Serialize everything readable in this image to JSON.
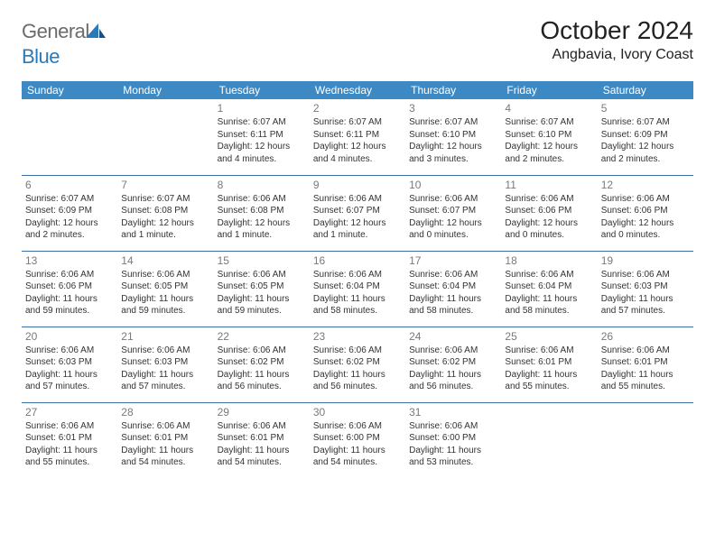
{
  "logo": {
    "text1": "General",
    "text2": "Blue"
  },
  "title": "October 2024",
  "location": "Angbavia, Ivory Coast",
  "colors": {
    "header_bg": "#3d89c3",
    "header_text": "#ffffff",
    "row_border": "#3d6fa3",
    "daynum": "#7a7a7a",
    "body_text": "#333333",
    "logo_gray": "#6b6b6b",
    "logo_blue": "#2a7ab8"
  },
  "weekdays": [
    "Sunday",
    "Monday",
    "Tuesday",
    "Wednesday",
    "Thursday",
    "Friday",
    "Saturday"
  ],
  "weeks": [
    [
      null,
      null,
      {
        "d": "1",
        "sr": "Sunrise: 6:07 AM",
        "ss": "Sunset: 6:11 PM",
        "dl1": "Daylight: 12 hours",
        "dl2": "and 4 minutes."
      },
      {
        "d": "2",
        "sr": "Sunrise: 6:07 AM",
        "ss": "Sunset: 6:11 PM",
        "dl1": "Daylight: 12 hours",
        "dl2": "and 4 minutes."
      },
      {
        "d": "3",
        "sr": "Sunrise: 6:07 AM",
        "ss": "Sunset: 6:10 PM",
        "dl1": "Daylight: 12 hours",
        "dl2": "and 3 minutes."
      },
      {
        "d": "4",
        "sr": "Sunrise: 6:07 AM",
        "ss": "Sunset: 6:10 PM",
        "dl1": "Daylight: 12 hours",
        "dl2": "and 2 minutes."
      },
      {
        "d": "5",
        "sr": "Sunrise: 6:07 AM",
        "ss": "Sunset: 6:09 PM",
        "dl1": "Daylight: 12 hours",
        "dl2": "and 2 minutes."
      }
    ],
    [
      {
        "d": "6",
        "sr": "Sunrise: 6:07 AM",
        "ss": "Sunset: 6:09 PM",
        "dl1": "Daylight: 12 hours",
        "dl2": "and 2 minutes."
      },
      {
        "d": "7",
        "sr": "Sunrise: 6:07 AM",
        "ss": "Sunset: 6:08 PM",
        "dl1": "Daylight: 12 hours",
        "dl2": "and 1 minute."
      },
      {
        "d": "8",
        "sr": "Sunrise: 6:06 AM",
        "ss": "Sunset: 6:08 PM",
        "dl1": "Daylight: 12 hours",
        "dl2": "and 1 minute."
      },
      {
        "d": "9",
        "sr": "Sunrise: 6:06 AM",
        "ss": "Sunset: 6:07 PM",
        "dl1": "Daylight: 12 hours",
        "dl2": "and 1 minute."
      },
      {
        "d": "10",
        "sr": "Sunrise: 6:06 AM",
        "ss": "Sunset: 6:07 PM",
        "dl1": "Daylight: 12 hours",
        "dl2": "and 0 minutes."
      },
      {
        "d": "11",
        "sr": "Sunrise: 6:06 AM",
        "ss": "Sunset: 6:06 PM",
        "dl1": "Daylight: 12 hours",
        "dl2": "and 0 minutes."
      },
      {
        "d": "12",
        "sr": "Sunrise: 6:06 AM",
        "ss": "Sunset: 6:06 PM",
        "dl1": "Daylight: 12 hours",
        "dl2": "and 0 minutes."
      }
    ],
    [
      {
        "d": "13",
        "sr": "Sunrise: 6:06 AM",
        "ss": "Sunset: 6:06 PM",
        "dl1": "Daylight: 11 hours",
        "dl2": "and 59 minutes."
      },
      {
        "d": "14",
        "sr": "Sunrise: 6:06 AM",
        "ss": "Sunset: 6:05 PM",
        "dl1": "Daylight: 11 hours",
        "dl2": "and 59 minutes."
      },
      {
        "d": "15",
        "sr": "Sunrise: 6:06 AM",
        "ss": "Sunset: 6:05 PM",
        "dl1": "Daylight: 11 hours",
        "dl2": "and 59 minutes."
      },
      {
        "d": "16",
        "sr": "Sunrise: 6:06 AM",
        "ss": "Sunset: 6:04 PM",
        "dl1": "Daylight: 11 hours",
        "dl2": "and 58 minutes."
      },
      {
        "d": "17",
        "sr": "Sunrise: 6:06 AM",
        "ss": "Sunset: 6:04 PM",
        "dl1": "Daylight: 11 hours",
        "dl2": "and 58 minutes."
      },
      {
        "d": "18",
        "sr": "Sunrise: 6:06 AM",
        "ss": "Sunset: 6:04 PM",
        "dl1": "Daylight: 11 hours",
        "dl2": "and 58 minutes."
      },
      {
        "d": "19",
        "sr": "Sunrise: 6:06 AM",
        "ss": "Sunset: 6:03 PM",
        "dl1": "Daylight: 11 hours",
        "dl2": "and 57 minutes."
      }
    ],
    [
      {
        "d": "20",
        "sr": "Sunrise: 6:06 AM",
        "ss": "Sunset: 6:03 PM",
        "dl1": "Daylight: 11 hours",
        "dl2": "and 57 minutes."
      },
      {
        "d": "21",
        "sr": "Sunrise: 6:06 AM",
        "ss": "Sunset: 6:03 PM",
        "dl1": "Daylight: 11 hours",
        "dl2": "and 57 minutes."
      },
      {
        "d": "22",
        "sr": "Sunrise: 6:06 AM",
        "ss": "Sunset: 6:02 PM",
        "dl1": "Daylight: 11 hours",
        "dl2": "and 56 minutes."
      },
      {
        "d": "23",
        "sr": "Sunrise: 6:06 AM",
        "ss": "Sunset: 6:02 PM",
        "dl1": "Daylight: 11 hours",
        "dl2": "and 56 minutes."
      },
      {
        "d": "24",
        "sr": "Sunrise: 6:06 AM",
        "ss": "Sunset: 6:02 PM",
        "dl1": "Daylight: 11 hours",
        "dl2": "and 56 minutes."
      },
      {
        "d": "25",
        "sr": "Sunrise: 6:06 AM",
        "ss": "Sunset: 6:01 PM",
        "dl1": "Daylight: 11 hours",
        "dl2": "and 55 minutes."
      },
      {
        "d": "26",
        "sr": "Sunrise: 6:06 AM",
        "ss": "Sunset: 6:01 PM",
        "dl1": "Daylight: 11 hours",
        "dl2": "and 55 minutes."
      }
    ],
    [
      {
        "d": "27",
        "sr": "Sunrise: 6:06 AM",
        "ss": "Sunset: 6:01 PM",
        "dl1": "Daylight: 11 hours",
        "dl2": "and 55 minutes."
      },
      {
        "d": "28",
        "sr": "Sunrise: 6:06 AM",
        "ss": "Sunset: 6:01 PM",
        "dl1": "Daylight: 11 hours",
        "dl2": "and 54 minutes."
      },
      {
        "d": "29",
        "sr": "Sunrise: 6:06 AM",
        "ss": "Sunset: 6:01 PM",
        "dl1": "Daylight: 11 hours",
        "dl2": "and 54 minutes."
      },
      {
        "d": "30",
        "sr": "Sunrise: 6:06 AM",
        "ss": "Sunset: 6:00 PM",
        "dl1": "Daylight: 11 hours",
        "dl2": "and 54 minutes."
      },
      {
        "d": "31",
        "sr": "Sunrise: 6:06 AM",
        "ss": "Sunset: 6:00 PM",
        "dl1": "Daylight: 11 hours",
        "dl2": "and 53 minutes."
      },
      null,
      null
    ]
  ]
}
